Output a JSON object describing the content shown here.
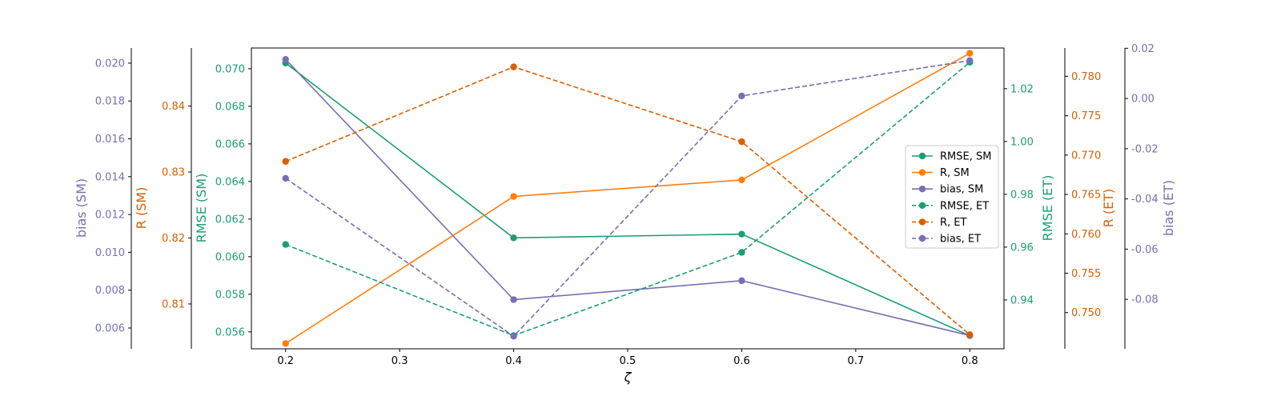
{
  "chart_data": {
    "type": "line",
    "xlabel": "ζ",
    "x": [
      0.2,
      0.4,
      0.6,
      0.8
    ],
    "x_ticks": [
      0.2,
      0.3,
      0.4,
      0.5,
      0.6,
      0.7,
      0.8
    ],
    "xlim": [
      0.17,
      0.83
    ],
    "grid": false,
    "legend_position": "right",
    "axes": [
      {
        "id": "rmse_sm",
        "label": "RMSE (SM)",
        "side": "left",
        "color": "#1b9e77",
        "ylim": [
          0.0551,
          0.0711
        ],
        "ticks": [
          0.056,
          0.058,
          0.06,
          0.062,
          0.064,
          0.066,
          0.068,
          0.07
        ],
        "decimals": 3
      },
      {
        "id": "r_sm",
        "label": "R (SM)",
        "side": "left",
        "color": "#d95f02",
        "ylim": [
          0.8032,
          0.8488
        ],
        "ticks": [
          0.81,
          0.82,
          0.83,
          0.84
        ],
        "decimals": 2
      },
      {
        "id": "bias_sm",
        "label": "bias (SM)",
        "side": "left",
        "color": "#7570b3",
        "ylim": [
          0.0049,
          0.0208
        ],
        "ticks": [
          0.006,
          0.008,
          0.01,
          0.012,
          0.014,
          0.016,
          0.018,
          0.02
        ],
        "decimals": 3
      },
      {
        "id": "rmse_et",
        "label": "RMSE (ET)",
        "side": "right",
        "color": "#1b9e77",
        "ylim": [
          0.9215,
          1.0354
        ],
        "ticks": [
          0.94,
          0.96,
          0.98,
          1.0,
          1.02
        ],
        "decimals": 2
      },
      {
        "id": "r_et",
        "label": "R (ET)",
        "side": "right",
        "color": "#d95f02",
        "ylim": [
          0.7454,
          0.7836
        ],
        "ticks": [
          0.75,
          0.755,
          0.76,
          0.765,
          0.77,
          0.775,
          0.78
        ],
        "decimals": 3
      },
      {
        "id": "bias_et",
        "label": "bias (ET)",
        "side": "right",
        "color": "#7570b3",
        "ylim": [
          -0.0997,
          0.0201
        ],
        "ticks": [
          -0.08,
          -0.06,
          -0.04,
          -0.02,
          0.0,
          0.02
        ],
        "decimals": 2
      }
    ],
    "series": [
      {
        "name": "RMSE, SM",
        "axis": "rmse_sm",
        "color": "#1b9e77",
        "dashed": false,
        "values": [
          0.0703,
          0.061,
          0.0612,
          0.0558
        ]
      },
      {
        "name": "R, SM",
        "axis": "r_sm",
        "color": "#ff7f0e",
        "dashed": false,
        "values": [
          0.804,
          0.8263,
          0.8288,
          0.848
        ]
      },
      {
        "name": "bias, SM",
        "axis": "bias_sm",
        "color": "#7570b3",
        "dashed": false,
        "values": [
          0.0202,
          0.0075,
          0.0085,
          0.0056
        ]
      },
      {
        "name": "RMSE, ET",
        "axis": "rmse_et",
        "color": "#1b9e77",
        "dashed": true,
        "values": [
          0.961,
          0.9265,
          0.958,
          1.03
        ]
      },
      {
        "name": "R, ET",
        "axis": "r_et",
        "color": "#d95f02",
        "dashed": true,
        "values": [
          0.7692,
          0.7812,
          0.7717,
          0.7472
        ]
      },
      {
        "name": "bias, ET",
        "axis": "bias_et",
        "color": "#7570b3",
        "dashed": true,
        "values": [
          -0.0318,
          -0.0947,
          0.001,
          0.0151
        ]
      }
    ]
  }
}
